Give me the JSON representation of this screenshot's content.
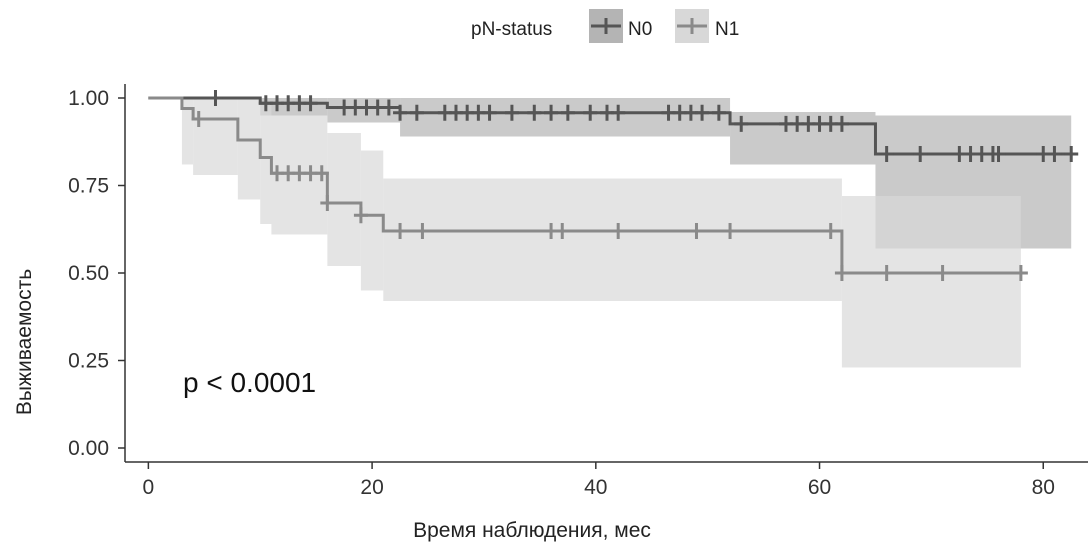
{
  "chart_data": {
    "type": "line",
    "subtype": "kaplan-meier",
    "xlabel": "Время наблюдения, мес",
    "ylabel": "Выживаемость",
    "xlim": [
      -2,
      84
    ],
    "ylim": [
      -0.04,
      1.04
    ],
    "x_ticks": [
      0,
      20,
      40,
      60,
      80
    ],
    "x_tick_labels": [
      "0",
      "20",
      "40",
      "60",
      "80"
    ],
    "y_ticks": [
      0,
      0.25,
      0.5,
      0.75,
      1.0
    ],
    "y_tick_labels": [
      "0.00",
      "0.25",
      "0.50",
      "0.75",
      "1.00"
    ],
    "grid": false,
    "legend": {
      "title": "pN-status",
      "placement": "top",
      "entries": [
        "N0",
        "N1"
      ]
    },
    "annotation": "p < 0.0001",
    "series": [
      {
        "name": "N0",
        "color": "#555555",
        "ci_color": "#b4b4b4",
        "steps": [
          [
            0,
            1.0
          ],
          [
            10,
            0.985
          ],
          [
            16,
            0.973
          ],
          [
            22.5,
            0.958
          ],
          [
            52,
            0.926
          ],
          [
            65,
            0.84
          ],
          [
            82.5,
            0.84
          ]
        ],
        "ci_steps": [
          [
            10,
            0.95,
            1.0
          ],
          [
            16,
            0.93,
            1.0
          ],
          [
            22.5,
            0.89,
            1.0
          ],
          [
            52,
            0.81,
            0.96
          ],
          [
            65,
            0.57,
            0.95
          ],
          [
            82.5,
            0.57,
            0.95
          ]
        ],
        "censor_times": [
          6,
          10.5,
          11.5,
          12.5,
          13.5,
          14.5,
          17.5,
          18.5,
          19.5,
          20.5,
          21.5,
          22.5,
          24,
          26.5,
          27.5,
          28.5,
          29.5,
          30.5,
          32.5,
          34.5,
          36,
          37.5,
          39.5,
          41,
          42,
          46.5,
          47.5,
          48.5,
          49.5,
          51,
          53,
          57,
          58,
          59,
          60,
          61,
          62,
          66,
          69,
          72.5,
          73.5,
          74.5,
          75.5,
          76,
          80,
          81,
          82.5
        ]
      },
      {
        "name": "N1",
        "color": "#8a8a8a",
        "ci_color": "#d8d8d8",
        "steps": [
          [
            0,
            1.0
          ],
          [
            3,
            0.97
          ],
          [
            4,
            0.94
          ],
          [
            8,
            0.88
          ],
          [
            10,
            0.83
          ],
          [
            11,
            0.785
          ],
          [
            16,
            0.7
          ],
          [
            19,
            0.665
          ],
          [
            21,
            0.62
          ],
          [
            62,
            0.5
          ],
          [
            78,
            0.5
          ]
        ],
        "ci_steps": [
          [
            3,
            0.81,
            1.0
          ],
          [
            4,
            0.78,
            1.0
          ],
          [
            8,
            0.71,
            1.0
          ],
          [
            10,
            0.64,
            0.98
          ],
          [
            11,
            0.61,
            0.95
          ],
          [
            16,
            0.52,
            0.9
          ],
          [
            19,
            0.45,
            0.85
          ],
          [
            21,
            0.42,
            0.77
          ],
          [
            62,
            0.23,
            0.72
          ],
          [
            78,
            0.23,
            0.72
          ]
        ],
        "censor_times": [
          4.5,
          11.5,
          12.5,
          13.5,
          14.5,
          15.5,
          16,
          19,
          22.5,
          24.5,
          36,
          37,
          42,
          49,
          52,
          61,
          62,
          66,
          71,
          78
        ]
      }
    ]
  }
}
